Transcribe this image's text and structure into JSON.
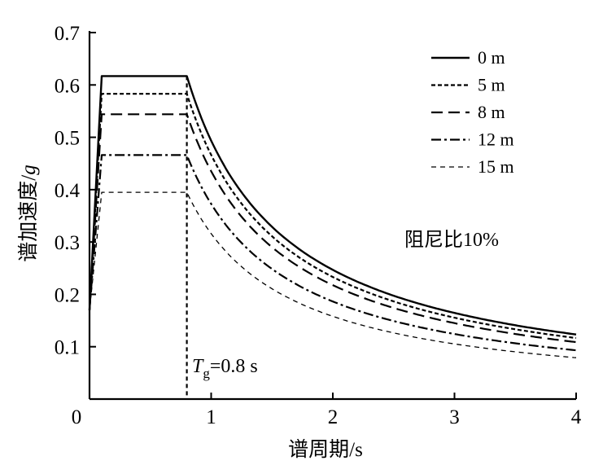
{
  "chart_data": {
    "type": "line",
    "title": "",
    "xlabel": "谱周期/s",
    "ylabel": "谱加速度/",
    "ylabel_unit": "g",
    "xlim": [
      0,
      4
    ],
    "ylim": [
      0,
      0.7
    ],
    "x_ticks": [
      0,
      1,
      2,
      3,
      4
    ],
    "x_tick_labels": [
      "0",
      "1",
      "2",
      "3",
      "4"
    ],
    "y_ticks": [
      0.1,
      0.2,
      0.3,
      0.4,
      0.5,
      0.6,
      0.7
    ],
    "y_tick_labels": [
      "0.1",
      "0.2",
      "0.3",
      "0.4",
      "0.5",
      "0.6",
      "0.7"
    ],
    "grid": false,
    "legend_position": "top-right",
    "series": [
      {
        "name": "0 m",
        "plateau": 0.617,
        "x": [
          0.0,
          0.1,
          0.8,
          1.0,
          1.5,
          2.0,
          2.5,
          3.0,
          3.5,
          4.0
        ],
        "y": [
          0.17,
          0.617,
          0.617,
          0.494,
          0.329,
          0.247,
          0.197,
          0.165,
          0.141,
          0.123
        ],
        "dash": "solid",
        "color": "#000000"
      },
      {
        "name": "5 m",
        "plateau": 0.583,
        "x": [
          0.0,
          0.1,
          0.8,
          1.0,
          1.5,
          2.0,
          2.5,
          3.0,
          3.5,
          4.0
        ],
        "y": [
          0.17,
          0.583,
          0.583,
          0.466,
          0.311,
          0.233,
          0.187,
          0.155,
          0.133,
          0.117
        ],
        "dash": "short-dash",
        "color": "#000000"
      },
      {
        "name": "8 m",
        "plateau": 0.544,
        "x": [
          0.0,
          0.1,
          0.8,
          1.0,
          1.5,
          2.0,
          2.5,
          3.0,
          3.5,
          4.0
        ],
        "y": [
          0.17,
          0.544,
          0.544,
          0.435,
          0.29,
          0.218,
          0.174,
          0.145,
          0.124,
          0.109
        ],
        "dash": "long-dash",
        "color": "#000000"
      },
      {
        "name": "12 m",
        "plateau": 0.466,
        "x": [
          0.0,
          0.1,
          0.8,
          1.0,
          1.5,
          2.0,
          2.5,
          3.0,
          3.5,
          4.0
        ],
        "y": [
          0.17,
          0.466,
          0.466,
          0.373,
          0.249,
          0.186,
          0.149,
          0.124,
          0.107,
          0.093
        ],
        "dash": "dash-dot",
        "color": "#000000"
      },
      {
        "name": "15 m",
        "plateau": 0.395,
        "x": [
          0.0,
          0.1,
          0.8,
          1.0,
          1.5,
          2.0,
          2.5,
          3.0,
          3.5,
          4.0
        ],
        "y": [
          0.17,
          0.395,
          0.395,
          0.316,
          0.211,
          0.158,
          0.126,
          0.105,
          0.09,
          0.079
        ],
        "dash": "thin-dash",
        "color": "#000000"
      }
    ],
    "annotations": [
      {
        "id": "damping",
        "text": "阻尼比10%"
      },
      {
        "id": "tg",
        "symbol": "T",
        "subscript": "g",
        "value": "=0.8 s",
        "x_value": 0.8
      }
    ]
  }
}
